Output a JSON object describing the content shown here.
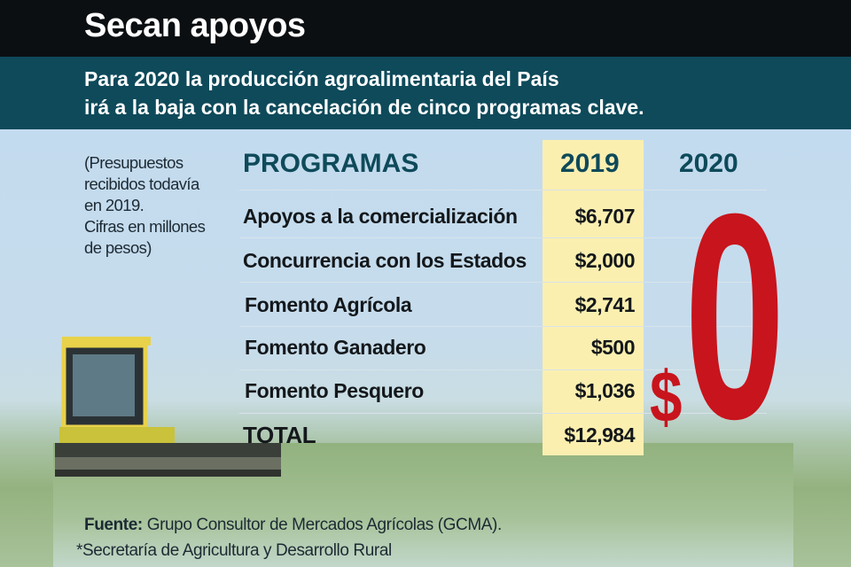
{
  "title": "Secan apoyos",
  "subtitle": [
    "Para 2020 la producción agroalimentaria del País",
    "irá a la baja con la cancelación de cinco programas clave."
  ],
  "note": [
    "(Presupuestos",
    "recibidos todavía",
    "en 2019.",
    "Cifras en millones",
    "de pesos)"
  ],
  "table": {
    "headers": [
      "PROGRAMAS",
      "2019",
      "2020"
    ],
    "rows": [
      {
        "program": "Apoyos a la comercialización",
        "v2019": "$6,707"
      },
      {
        "program": "Concurrencia con los Estados",
        "v2019": "$2,000"
      },
      {
        "program": "Fomento Agrícola",
        "v2019": "$2,741"
      },
      {
        "program": "Fomento Ganadero",
        "v2019": "$500"
      },
      {
        "program": "Fomento Pesquero",
        "v2019": "$1,036"
      }
    ],
    "total": {
      "label": "TOTAL",
      "v2019": "$12,984"
    },
    "v2020_dollar": "$",
    "v2020_zero": "0"
  },
  "source": {
    "label": "Fuente:",
    "text": " Grupo Consultor de Mercados Agrícolas (GCMA)."
  },
  "footnote": "*Secretaría de Agricultura y Desarrollo Rural"
}
